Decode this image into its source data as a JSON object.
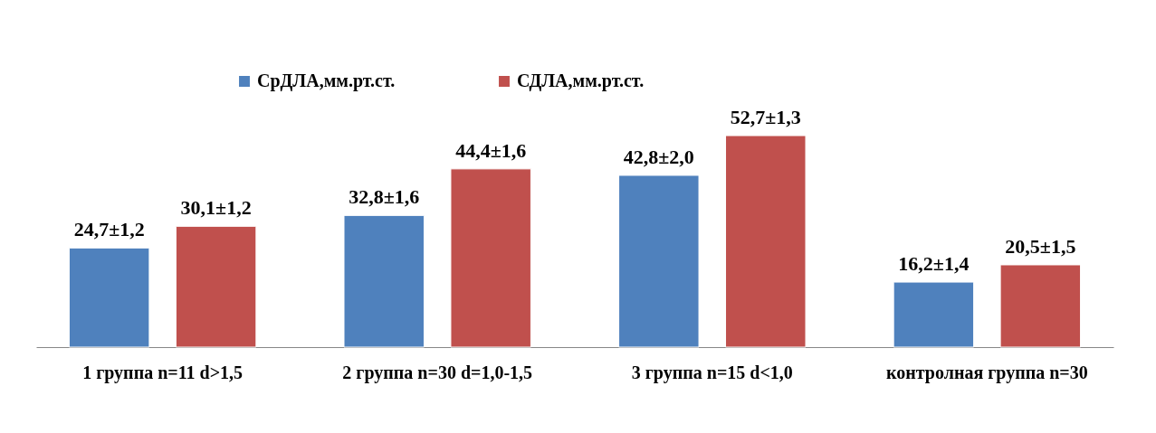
{
  "chart_data": {
    "type": "bar",
    "categories": [
      "1 группа n=11 d>1,5",
      "2 группа n=30 d=1,0-1,5",
      "3 группа n=15 d<1,0",
      "контролная  группа n=30"
    ],
    "series": [
      {
        "name": "СрДЛА,мм.рт.ст.",
        "color": "#4f81bd",
        "values": [
          24.7,
          32.8,
          42.8,
          16.2
        ],
        "value_labels": [
          "24,7±1,2",
          "32,8±1,6",
          "42,8±2,0",
          "16,2±1,4"
        ]
      },
      {
        "name": "СДЛА,мм.рт.ст.",
        "color": "#c0504d",
        "values": [
          30.1,
          44.4,
          52.7,
          20.5
        ],
        "value_labels": [
          "30,1±1,2",
          "44,4±1,6",
          "52,7±1,3",
          "20,5±1,5"
        ]
      }
    ],
    "legend": "top",
    "tick_labels": "x"
  }
}
